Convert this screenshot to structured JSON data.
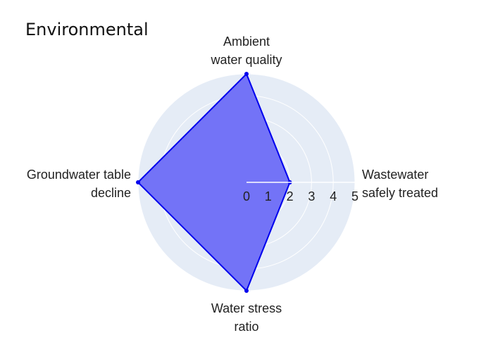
{
  "chart_data": {
    "type": "radar",
    "title": "Environmental",
    "axes": [
      {
        "lines": [
          "Ambient",
          "water quality"
        ]
      },
      {
        "lines": [
          "Wastewater",
          "safely treated"
        ]
      },
      {
        "lines": [
          "Water stress",
          "ratio"
        ]
      },
      {
        "lines": [
          "Groundwater table",
          "decline"
        ]
      }
    ],
    "values": [
      5,
      2,
      5,
      5
    ],
    "radial_range": [
      0,
      5
    ],
    "radial_ticks": [
      "0",
      "1",
      "2",
      "3",
      "4",
      "5"
    ],
    "fill_color": "#7373f7",
    "line_color": "#0000ee",
    "polar_bg_color": "#e5ecf6",
    "grid": true
  }
}
